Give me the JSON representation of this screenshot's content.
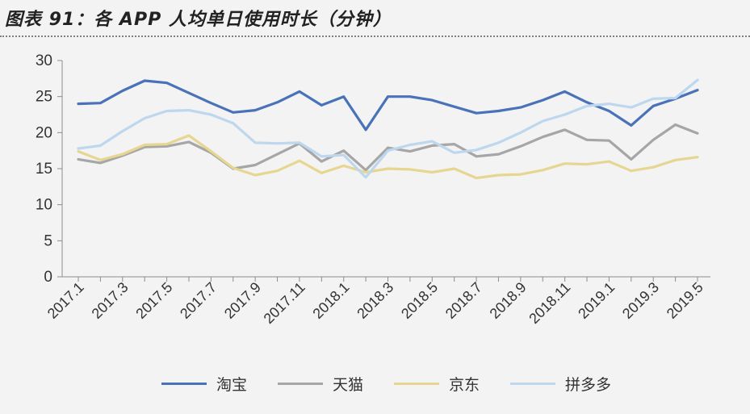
{
  "title": "图表 91：各 APP 人均单日使用时长（分钟）",
  "chart_data": {
    "type": "line",
    "title": "图表 91：各 APP 人均单日使用时长（分钟）",
    "x": [
      "2017.1",
      "2017.2",
      "2017.3",
      "2017.4",
      "2017.5",
      "2017.6",
      "2017.7",
      "2017.8",
      "2017.9",
      "2017.10",
      "2017.11",
      "2017.12",
      "2018.1",
      "2018.2",
      "2018.3",
      "2018.4",
      "2018.5",
      "2018.6",
      "2018.7",
      "2018.8",
      "2018.9",
      "2018.10",
      "2018.11",
      "2018.12",
      "2019.1",
      "2019.2",
      "2019.3",
      "2019.4",
      "2019.5"
    ],
    "x_tick_labels": [
      "2017.1",
      "2017.3",
      "2017.5",
      "2017.7",
      "2017.9",
      "2017.11",
      "2018.1",
      "2018.3",
      "2018.5",
      "2018.7",
      "2018.9",
      "2018.11",
      "2019.1",
      "2019.3",
      "2019.5"
    ],
    "ylim": [
      0,
      30
    ],
    "y_ticks": [
      0,
      5,
      10,
      15,
      20,
      25,
      30
    ],
    "grid": false,
    "legend": "bottom",
    "series": [
      {
        "name": "淘宝",
        "color": "#4a72b8",
        "values": [
          24.0,
          24.1,
          25.8,
          27.2,
          26.9,
          25.5,
          24.1,
          22.8,
          23.1,
          24.2,
          25.7,
          23.8,
          25.0,
          20.4,
          25.0,
          25.0,
          24.5,
          23.6,
          22.7,
          23.0,
          23.5,
          24.5,
          25.7,
          24.2,
          23.0,
          21.0,
          23.7,
          24.7,
          25.9
        ]
      },
      {
        "name": "天猫",
        "color": "#a6a6a6",
        "values": [
          16.3,
          15.8,
          16.8,
          18.0,
          18.1,
          18.7,
          17.2,
          15.0,
          15.5,
          17.0,
          18.5,
          16.0,
          17.5,
          14.8,
          17.9,
          17.4,
          18.2,
          18.4,
          16.7,
          17.0,
          18.1,
          19.4,
          20.4,
          19.0,
          18.9,
          16.3,
          19.0,
          21.1,
          19.9
        ]
      },
      {
        "name": "京东",
        "color": "#e6d691",
        "values": [
          17.4,
          16.2,
          17.0,
          18.3,
          18.4,
          19.6,
          17.4,
          15.1,
          14.1,
          14.7,
          16.1,
          14.4,
          15.4,
          14.5,
          15.0,
          14.9,
          14.5,
          15.0,
          13.7,
          14.1,
          14.2,
          14.8,
          15.7,
          15.6,
          16.0,
          14.7,
          15.2,
          16.2,
          16.6
        ]
      },
      {
        "name": "拼多多",
        "color": "#bdd7ee",
        "values": [
          17.8,
          18.2,
          20.2,
          22.0,
          23.0,
          23.1,
          22.5,
          21.3,
          18.6,
          18.5,
          18.6,
          16.7,
          16.9,
          13.8,
          17.5,
          18.3,
          18.8,
          17.2,
          17.6,
          18.6,
          20.0,
          21.6,
          22.5,
          23.7,
          24.0,
          23.5,
          24.7,
          24.8,
          27.3
        ]
      }
    ]
  }
}
